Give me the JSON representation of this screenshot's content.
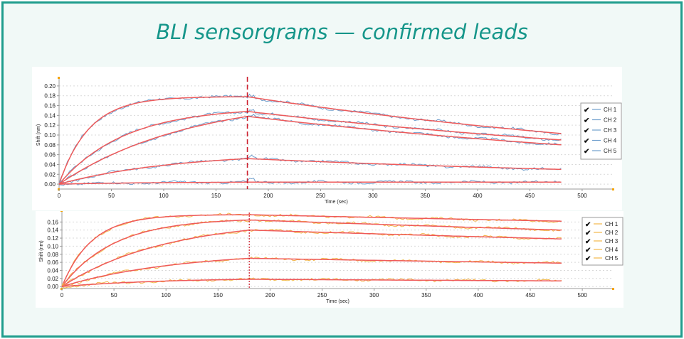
{
  "page": {
    "title": "BLI sensorgrams — confirmed leads"
  },
  "colors": {
    "background": "#f1f9f7",
    "border": "#1f9d8d",
    "title": "#16968a",
    "fit": "#ef5a5a",
    "panel1_series": "#6f9fcd",
    "panel2_series": "#f2b64a",
    "marker": "#cc1e2c"
  },
  "chart_data": [
    {
      "type": "line",
      "xlabel": "Time (sec)",
      "ylabel": "Shift (nm)",
      "xlim": [
        0,
        530
      ],
      "ylim": [
        -0.01,
        0.21
      ],
      "xticks": [
        "0",
        "50",
        "100",
        "150",
        "200",
        "250",
        "300",
        "350",
        "400",
        "450",
        "500"
      ],
      "yticks": [
        "0.00",
        "0.02",
        "0.04",
        "0.06",
        "0.08",
        "0.10",
        "0.12",
        "0.14",
        "0.16",
        "0.18",
        "0.20"
      ],
      "grid": true,
      "legend_position": "right",
      "legend": [
        "CH 1",
        "CH 2",
        "CH 3",
        "CH 4",
        "CH 5"
      ],
      "divider_x": 180,
      "x_end": 480,
      "series": [
        {
          "name": "CH 1",
          "assoc_end": 0.178,
          "kon": 0.035,
          "dissoc_end": 0.103
        },
        {
          "name": "CH 2",
          "assoc_end": 0.148,
          "kon": 0.016,
          "dissoc_end": 0.09
        },
        {
          "name": "CH 3",
          "assoc_end": 0.138,
          "kon": 0.008,
          "dissoc_end": 0.08
        },
        {
          "name": "CH 4",
          "assoc_end": 0.052,
          "kon": 0.009,
          "dissoc_end": 0.03
        },
        {
          "name": "CH 5",
          "assoc_end": 0.004,
          "kon": 0.01,
          "dissoc_end": 0.004
        }
      ]
    },
    {
      "type": "line",
      "xlabel": "Time (sec)",
      "ylabel": "Shift (nm)",
      "xlim": [
        0,
        530
      ],
      "ylim": [
        -0.005,
        0.18
      ],
      "xticks": [
        "0",
        "50",
        "100",
        "150",
        "200",
        "250",
        "300",
        "350",
        "400",
        "450",
        "500"
      ],
      "yticks": [
        "0.00",
        "0.02",
        "0.04",
        "0.06",
        "0.08",
        "0.10",
        "0.12",
        "0.14",
        "0.16"
      ],
      "grid": true,
      "legend_position": "right",
      "legend": [
        "CH 1",
        "CH 2",
        "CH 3",
        "CH 4",
        "CH 5"
      ],
      "divider_x": 180,
      "x_end": 480,
      "series": [
        {
          "name": "CH 1",
          "assoc_end": 0.178,
          "kon": 0.035,
          "dissoc_end": 0.162
        },
        {
          "name": "CH 2",
          "assoc_end": 0.165,
          "kon": 0.02,
          "dissoc_end": 0.14
        },
        {
          "name": "CH 3",
          "assoc_end": 0.14,
          "kon": 0.01,
          "dissoc_end": 0.118
        },
        {
          "name": "CH 4",
          "assoc_end": 0.07,
          "kon": 0.009,
          "dissoc_end": 0.058
        },
        {
          "name": "CH 5",
          "assoc_end": 0.018,
          "kon": 0.01,
          "dissoc_end": 0.014
        }
      ]
    }
  ]
}
